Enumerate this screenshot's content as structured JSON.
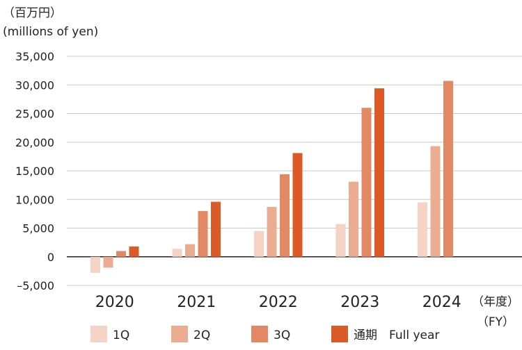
{
  "chart_data": {
    "type": "bar",
    "unit_label_ja": "（百万円）",
    "unit_label_en": "(millions of yen)",
    "x_unit_ja": "（年度）",
    "x_unit_en": "（FY）",
    "categories": [
      "2020",
      "2021",
      "2022",
      "2023",
      "2024"
    ],
    "series": [
      {
        "name": "1Q",
        "color": "#f5d3c5",
        "values": [
          -2800,
          1400,
          4500,
          5700,
          9500
        ]
      },
      {
        "name": "2Q",
        "color": "#ebac92",
        "values": [
          -1900,
          2200,
          8700,
          13100,
          19300
        ]
      },
      {
        "name": "3Q",
        "color": "#e28865",
        "values": [
          1000,
          8000,
          14400,
          26000,
          30700
        ]
      },
      {
        "name": "通期　Full year",
        "color": "#db5a28",
        "values": [
          1800,
          9600,
          18100,
          29400,
          null
        ]
      }
    ],
    "ylim": [
      -5000,
      35000
    ],
    "yticks": [
      -5000,
      0,
      5000,
      10000,
      15000,
      20000,
      25000,
      30000,
      35000
    ],
    "ytick_labels": [
      "–5,000",
      "0",
      "5,000",
      "10,000",
      "15,000",
      "20,000",
      "25,000",
      "30,000",
      "35,000"
    ],
    "grid": true,
    "legend_position": "bottom"
  }
}
